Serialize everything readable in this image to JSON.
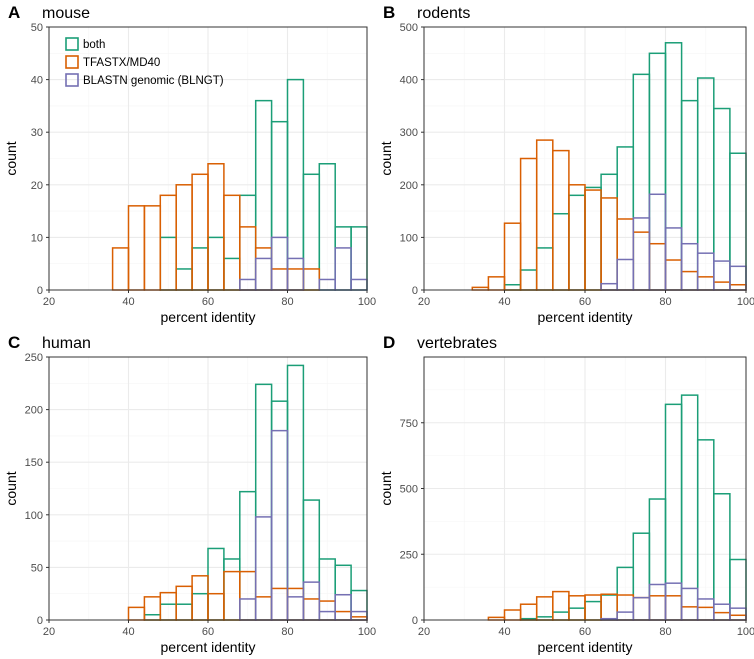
{
  "colors": {
    "both": "#1b9e77",
    "tfastx": "#d95f02",
    "blngt": "#7570b3",
    "grid_major": "#ebebeb",
    "grid_minor": "#f5f5f5",
    "frame": "#333333"
  },
  "legend": [
    {
      "key": "both",
      "label": "both"
    },
    {
      "key": "tfastx",
      "label": "TFASTX/MD40"
    },
    {
      "key": "blngt",
      "label": "BLASTN genomic (BLNGT)"
    }
  ],
  "chart_data": [
    {
      "type": "bar",
      "subtype": "histogram-step",
      "letter": "A",
      "title": "mouse",
      "xlabel": "percent identity",
      "ylabel": "count",
      "xlim": [
        20,
        100
      ],
      "ylim": [
        0,
        50
      ],
      "xticks": [
        20,
        40,
        60,
        80,
        100
      ],
      "yticks": [
        0,
        10,
        20,
        30,
        40,
        50
      ],
      "bin_edges": [
        24,
        28,
        32,
        36,
        40,
        44,
        48,
        52,
        56,
        60,
        64,
        68,
        72,
        76,
        80,
        84,
        88,
        92,
        96,
        100
      ],
      "grid": true,
      "legend_position": "top-left",
      "series": [
        {
          "name": "both",
          "key": "both",
          "values": [
            0,
            0,
            0,
            0,
            0,
            0,
            10,
            4,
            8,
            10,
            6,
            18,
            36,
            32,
            40,
            22,
            24,
            12,
            12
          ]
        },
        {
          "name": "TFASTX/MD40",
          "key": "tfastx",
          "values": [
            0,
            0,
            0,
            8,
            16,
            16,
            18,
            20,
            22,
            24,
            18,
            12,
            8,
            4,
            4,
            4,
            0,
            0,
            0
          ]
        },
        {
          "name": "BLASTN genomic (BLNGT)",
          "key": "blngt",
          "values": [
            0,
            0,
            0,
            0,
            0,
            0,
            0,
            0,
            0,
            0,
            0,
            2,
            6,
            10,
            6,
            0,
            2,
            8,
            2
          ]
        }
      ]
    },
    {
      "type": "bar",
      "subtype": "histogram-step",
      "letter": "B",
      "title": "rodents",
      "xlabel": "percent identity",
      "ylabel": "count",
      "xlim": [
        20,
        100
      ],
      "ylim": [
        0,
        500
      ],
      "xticks": [
        20,
        40,
        60,
        80,
        100
      ],
      "yticks": [
        0,
        100,
        200,
        300,
        400,
        500
      ],
      "bin_edges": [
        24,
        28,
        32,
        36,
        40,
        44,
        48,
        52,
        56,
        60,
        64,
        68,
        72,
        76,
        80,
        84,
        88,
        92,
        96,
        100
      ],
      "grid": true,
      "series": [
        {
          "name": "both",
          "key": "both",
          "values": [
            0,
            0,
            0,
            0,
            10,
            38,
            80,
            145,
            180,
            195,
            220,
            272,
            410,
            450,
            470,
            360,
            403,
            345,
            260
          ]
        },
        {
          "name": "TFASTX/MD40",
          "key": "tfastx",
          "values": [
            0,
            0,
            5,
            25,
            127,
            250,
            285,
            265,
            200,
            190,
            175,
            135,
            110,
            88,
            57,
            35,
            25,
            15,
            10
          ]
        },
        {
          "name": "BLASTN genomic (BLNGT)",
          "key": "blngt",
          "values": [
            0,
            0,
            0,
            0,
            0,
            0,
            0,
            0,
            0,
            0,
            12,
            58,
            137,
            182,
            118,
            88,
            70,
            55,
            45
          ]
        }
      ]
    },
    {
      "type": "bar",
      "subtype": "histogram-step",
      "letter": "C",
      "title": "human",
      "xlabel": "percent identity",
      "ylabel": "count",
      "xlim": [
        20,
        100
      ],
      "ylim": [
        0,
        250
      ],
      "xticks": [
        20,
        40,
        60,
        80,
        100
      ],
      "yticks": [
        0,
        50,
        100,
        150,
        200,
        250
      ],
      "bin_edges": [
        24,
        28,
        32,
        36,
        40,
        44,
        48,
        52,
        56,
        60,
        64,
        68,
        72,
        76,
        80,
        84,
        88,
        92,
        96,
        100
      ],
      "grid": true,
      "series": [
        {
          "name": "both",
          "key": "both",
          "values": [
            0,
            0,
            0,
            0,
            0,
            5,
            15,
            15,
            25,
            68,
            58,
            122,
            224,
            208,
            242,
            114,
            58,
            52,
            28
          ]
        },
        {
          "name": "TFASTX/MD40",
          "key": "tfastx",
          "values": [
            0,
            0,
            0,
            0,
            12,
            22,
            26,
            32,
            42,
            25,
            46,
            46,
            22,
            30,
            30,
            20,
            18,
            8,
            3
          ]
        },
        {
          "name": "BLASTN genomic (BLNGT)",
          "key": "blngt",
          "values": [
            0,
            0,
            0,
            0,
            0,
            0,
            0,
            0,
            0,
            0,
            0,
            20,
            98,
            180,
            22,
            36,
            8,
            24,
            8
          ]
        }
      ]
    },
    {
      "type": "bar",
      "subtype": "histogram-step",
      "letter": "D",
      "title": "vertebrates",
      "xlabel": "percent identity",
      "ylabel": "count",
      "xlim": [
        20,
        100
      ],
      "ylim": [
        0,
        1000
      ],
      "xticks": [
        20,
        40,
        60,
        80,
        100
      ],
      "yticks": [
        0,
        250,
        500,
        750
      ],
      "bin_edges": [
        24,
        28,
        32,
        36,
        40,
        44,
        48,
        52,
        56,
        60,
        64,
        68,
        72,
        76,
        80,
        84,
        88,
        92,
        96,
        100
      ],
      "grid": true,
      "series": [
        {
          "name": "both",
          "key": "both",
          "values": [
            0,
            0,
            0,
            0,
            0,
            5,
            12,
            30,
            45,
            70,
            95,
            200,
            330,
            460,
            820,
            855,
            685,
            480,
            230
          ]
        },
        {
          "name": "TFASTX/MD40",
          "key": "tfastx",
          "values": [
            0,
            0,
            0,
            10,
            38,
            60,
            88,
            108,
            92,
            95,
            98,
            95,
            85,
            92,
            92,
            50,
            48,
            28,
            18
          ]
        },
        {
          "name": "BLASTN genomic (BLNGT)",
          "key": "blngt",
          "values": [
            0,
            0,
            0,
            0,
            0,
            0,
            0,
            0,
            0,
            0,
            5,
            30,
            85,
            135,
            140,
            120,
            80,
            60,
            45
          ]
        }
      ]
    }
  ]
}
